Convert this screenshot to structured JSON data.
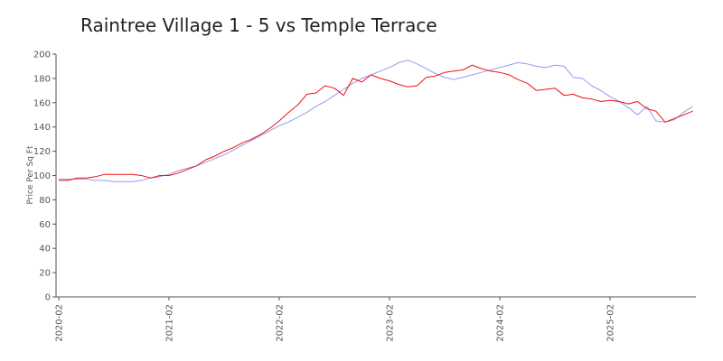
{
  "chart_data": {
    "type": "line",
    "title": "Raintree Village 1 - 5 vs Temple Terrace",
    "xlabel": "",
    "ylabel": "Price Per Sq Ft",
    "ylim": [
      0,
      200
    ],
    "yticks": [
      0,
      20,
      40,
      60,
      80,
      100,
      120,
      140,
      160,
      180,
      200
    ],
    "xticks": [
      "2020-02",
      "2021-02",
      "2022-02",
      "2023-02",
      "2024-02",
      "2025-02"
    ],
    "legend": "none",
    "grid": false,
    "colors": {
      "series_red": "#ee1111",
      "series_blue": "#9999ee",
      "axis": "#555555"
    },
    "series": [
      {
        "color": "#ee1111",
        "points": [
          [
            "2020-02-01",
            96
          ],
          [
            "2020-03-01",
            96
          ],
          [
            "2020-04-01",
            98
          ],
          [
            "2020-05-01",
            98
          ],
          [
            "2020-06-01",
            99
          ],
          [
            "2020-07-01",
            101
          ],
          [
            "2020-08-01",
            101
          ],
          [
            "2020-09-01",
            101
          ],
          [
            "2020-10-01",
            101
          ],
          [
            "2020-11-01",
            100
          ],
          [
            "2020-12-01",
            98
          ],
          [
            "2021-01-01",
            100
          ],
          [
            "2021-02-01",
            100
          ],
          [
            "2021-03-01",
            102
          ],
          [
            "2021-04-01",
            105
          ],
          [
            "2021-05-01",
            108
          ],
          [
            "2021-06-01",
            113
          ],
          [
            "2021-07-01",
            116
          ],
          [
            "2021-08-01",
            120
          ],
          [
            "2021-09-01",
            123
          ],
          [
            "2021-10-01",
            127
          ],
          [
            "2021-11-01",
            130
          ],
          [
            "2021-12-01",
            134
          ],
          [
            "2022-01-01",
            139
          ],
          [
            "2022-02-01",
            145
          ],
          [
            "2022-03-01",
            152
          ],
          [
            "2022-04-01",
            158
          ],
          [
            "2022-05-01",
            167
          ],
          [
            "2022-06-01",
            168
          ],
          [
            "2022-07-01",
            174
          ],
          [
            "2022-08-01",
            172
          ],
          [
            "2022-09-01",
            166
          ],
          [
            "2022-10-01",
            180
          ],
          [
            "2022-11-01",
            177
          ],
          [
            "2022-12-01",
            183
          ],
          [
            "2023-01-01",
            180
          ],
          [
            "2023-02-01",
            178
          ],
          [
            "2023-03-01",
            175
          ],
          [
            "2023-04-01",
            173
          ],
          [
            "2023-05-01",
            174
          ],
          [
            "2023-06-01",
            181
          ],
          [
            "2023-07-01",
            182
          ],
          [
            "2023-08-01",
            185
          ],
          [
            "2023-09-01",
            186
          ],
          [
            "2023-10-01",
            187
          ],
          [
            "2023-11-01",
            191
          ],
          [
            "2023-12-01",
            188
          ],
          [
            "2024-01-01",
            186
          ],
          [
            "2024-02-01",
            185
          ],
          [
            "2024-03-01",
            183
          ],
          [
            "2024-04-01",
            179
          ],
          [
            "2024-05-01",
            176
          ],
          [
            "2024-06-01",
            170
          ],
          [
            "2024-07-01",
            171
          ],
          [
            "2024-08-01",
            172
          ],
          [
            "2024-09-01",
            166
          ],
          [
            "2024-10-01",
            167
          ],
          [
            "2024-11-01",
            164
          ],
          [
            "2024-12-01",
            163
          ],
          [
            "2025-01-01",
            161
          ],
          [
            "2025-02-01",
            162
          ],
          [
            "2025-03-01",
            161
          ],
          [
            "2025-04-01",
            159
          ],
          [
            "2025-05-01",
            161
          ],
          [
            "2025-06-01",
            155
          ],
          [
            "2025-07-01",
            153
          ],
          [
            "2025-08-01",
            144
          ],
          [
            "2025-09-01",
            147
          ],
          [
            "2025-10-01",
            150
          ],
          [
            "2025-11-01",
            153
          ]
        ]
      },
      {
        "color": "#9999ee",
        "points": [
          [
            "2020-02-01",
            97
          ],
          [
            "2020-03-01",
            97
          ],
          [
            "2020-04-01",
            97
          ],
          [
            "2020-05-01",
            97
          ],
          [
            "2020-06-01",
            96
          ],
          [
            "2020-07-01",
            96
          ],
          [
            "2020-08-01",
            95
          ],
          [
            "2020-09-01",
            95
          ],
          [
            "2020-10-01",
            95
          ],
          [
            "2020-11-01",
            96
          ],
          [
            "2020-12-01",
            98
          ],
          [
            "2021-01-01",
            99
          ],
          [
            "2021-02-01",
            101
          ],
          [
            "2021-03-01",
            104
          ],
          [
            "2021-04-01",
            106
          ],
          [
            "2021-05-01",
            108
          ],
          [
            "2021-06-01",
            111
          ],
          [
            "2021-07-01",
            114
          ],
          [
            "2021-08-01",
            117
          ],
          [
            "2021-09-01",
            121
          ],
          [
            "2021-10-01",
            125
          ],
          [
            "2021-11-01",
            129
          ],
          [
            "2021-12-01",
            133
          ],
          [
            "2022-01-01",
            137
          ],
          [
            "2022-02-01",
            141
          ],
          [
            "2022-03-01",
            144
          ],
          [
            "2022-04-01",
            148
          ],
          [
            "2022-05-01",
            152
          ],
          [
            "2022-06-01",
            157
          ],
          [
            "2022-07-01",
            161
          ],
          [
            "2022-08-01",
            166
          ],
          [
            "2022-09-01",
            171
          ],
          [
            "2022-10-01",
            176
          ],
          [
            "2022-11-01",
            180
          ],
          [
            "2022-12-01",
            183
          ],
          [
            "2023-01-01",
            186
          ],
          [
            "2023-02-01",
            189
          ],
          [
            "2023-03-01",
            193
          ],
          [
            "2023-04-01",
            195
          ],
          [
            "2023-05-01",
            192
          ],
          [
            "2023-06-01",
            188
          ],
          [
            "2023-07-01",
            184
          ],
          [
            "2023-08-01",
            181
          ],
          [
            "2023-09-01",
            179
          ],
          [
            "2023-10-01",
            181
          ],
          [
            "2023-11-01",
            183
          ],
          [
            "2023-12-01",
            185
          ],
          [
            "2024-01-01",
            187
          ],
          [
            "2024-02-01",
            189
          ],
          [
            "2024-03-01",
            191
          ],
          [
            "2024-04-01",
            193
          ],
          [
            "2024-05-01",
            192
          ],
          [
            "2024-06-01",
            190
          ],
          [
            "2024-07-01",
            189
          ],
          [
            "2024-08-01",
            191
          ],
          [
            "2024-09-01",
            190
          ],
          [
            "2024-10-01",
            181
          ],
          [
            "2024-11-01",
            180
          ],
          [
            "2024-12-01",
            174
          ],
          [
            "2025-01-01",
            170
          ],
          [
            "2025-02-01",
            165
          ],
          [
            "2025-03-01",
            161
          ],
          [
            "2025-04-01",
            156
          ],
          [
            "2025-05-01",
            150
          ],
          [
            "2025-06-01",
            157
          ],
          [
            "2025-07-01",
            145
          ],
          [
            "2025-08-01",
            144
          ],
          [
            "2025-09-01",
            146
          ],
          [
            "2025-10-01",
            152
          ],
          [
            "2025-11-01",
            157
          ]
        ]
      }
    ]
  }
}
